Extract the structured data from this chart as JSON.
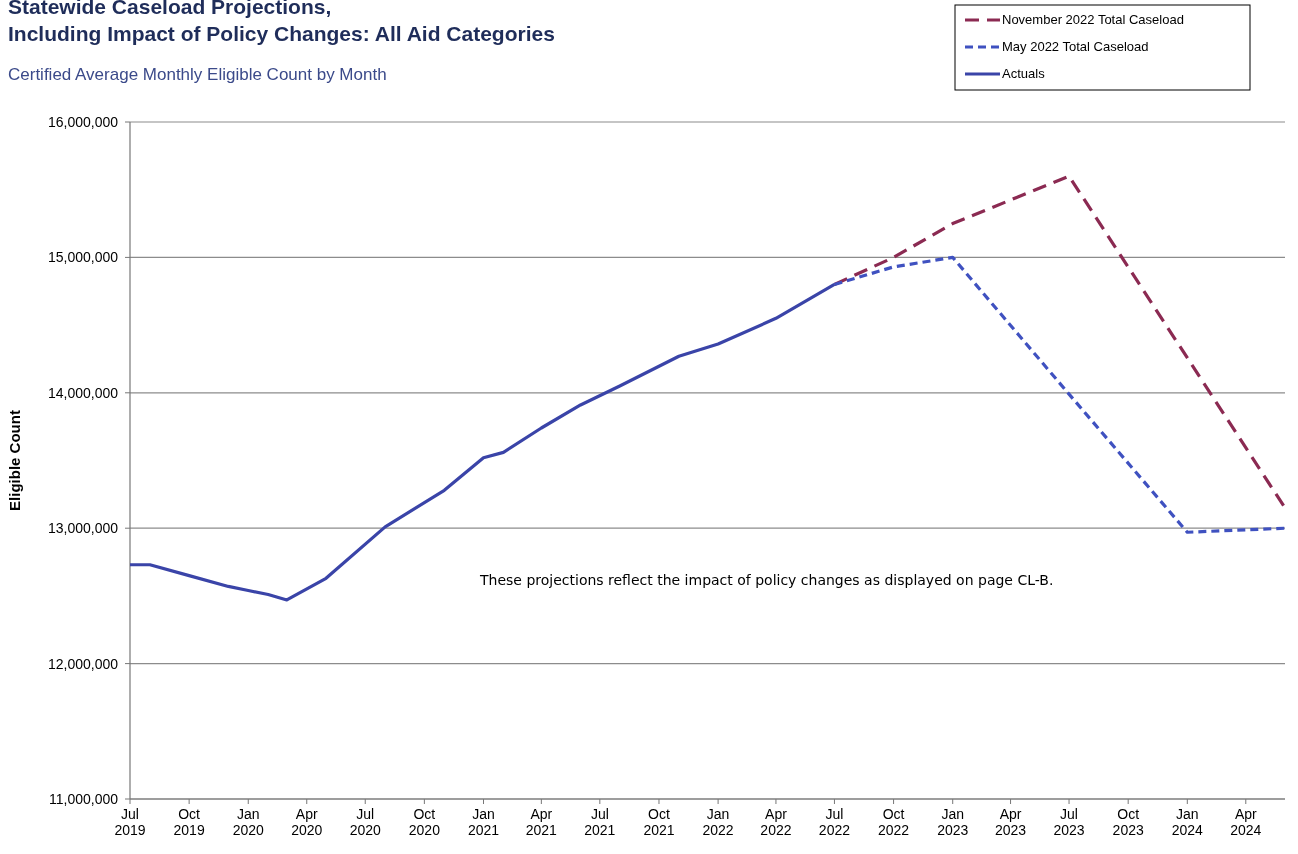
{
  "chart_data": {
    "type": "line",
    "title": "Statewide Caseload Projections,\nIncluding Impact of Policy Changes: All Aid Categories",
    "subtitle": "Certified Average Monthly Eligible Count by Month",
    "ylabel": "Eligible Count",
    "annotations": [
      "These projections reflect the impact of policy changes as displayed on page CL-B."
    ],
    "series": [
      {
        "name": "November 2022 Total Caseload",
        "color": "#8b2a52",
        "line_style": "dashed",
        "x": [
          "2022-07",
          "2022-10",
          "2023-01",
          "2023-07",
          "2024-06"
        ],
        "values": [
          14800000,
          15000000,
          15250000,
          15600000,
          13150000
        ]
      },
      {
        "name": "May 2022 Total Caseload",
        "color": "#3f51c0",
        "line_style": "dotted",
        "x": [
          "2022-07",
          "2022-10",
          "2023-01",
          "2023-07",
          "2024-01",
          "2024-06"
        ],
        "values": [
          14800000,
          14930000,
          15000000,
          13990000,
          12970000,
          13000000
        ]
      },
      {
        "name": "Actuals",
        "color": "#3a44a8",
        "line_style": "solid",
        "x": [
          "2019-07",
          "2019-08",
          "2019-10",
          "2019-12",
          "2020-01",
          "2020-02",
          "2020-03",
          "2020-05",
          "2020-08",
          "2020-11",
          "2021-01",
          "2021-02",
          "2021-04",
          "2021-06",
          "2021-08",
          "2021-11",
          "2022-01",
          "2022-04",
          "2022-07"
        ],
        "values": [
          12730000,
          12730000,
          12650000,
          12570000,
          12540000,
          12510000,
          12470000,
          12630000,
          13010000,
          13280000,
          13520000,
          13560000,
          13740000,
          13910000,
          14050000,
          14270000,
          14360000,
          14550000,
          14800000
        ]
      }
    ],
    "xlim": [
      "2019-07",
      "2024-06"
    ],
    "xticks": [
      {
        "value": "2019-07",
        "label": "Jul\n2019"
      },
      {
        "value": "2019-10",
        "label": "Oct\n2019"
      },
      {
        "value": "2020-01",
        "label": "Jan\n2020"
      },
      {
        "value": "2020-04",
        "label": "Apr\n2020"
      },
      {
        "value": "2020-07",
        "label": "Jul\n2020"
      },
      {
        "value": "2020-10",
        "label": "Oct\n2020"
      },
      {
        "value": "2021-01",
        "label": "Jan\n2021"
      },
      {
        "value": "2021-04",
        "label": "Apr\n2021"
      },
      {
        "value": "2021-07",
        "label": "Jul\n2021"
      },
      {
        "value": "2021-10",
        "label": "Oct\n2021"
      },
      {
        "value": "2022-01",
        "label": "Jan\n2022"
      },
      {
        "value": "2022-04",
        "label": "Apr\n2022"
      },
      {
        "value": "2022-07",
        "label": "Jul\n2022"
      },
      {
        "value": "2022-10",
        "label": "Oct\n2022"
      },
      {
        "value": "2023-01",
        "label": "Jan\n2023"
      },
      {
        "value": "2023-04",
        "label": "Apr\n2023"
      },
      {
        "value": "2023-07",
        "label": "Jul\n2023"
      },
      {
        "value": "2023-10",
        "label": "Oct\n2023"
      },
      {
        "value": "2024-01",
        "label": "Jan\n2024"
      },
      {
        "value": "2024-04",
        "label": "Apr\n2024"
      }
    ],
    "ylim": [
      11000000,
      16000000
    ],
    "yticks": [
      {
        "value": 11000000,
        "label": "11,000,000"
      },
      {
        "value": 12000000,
        "label": "12,000,000"
      },
      {
        "value": 13000000,
        "label": "13,000,000"
      },
      {
        "value": 14000000,
        "label": "14,000,000"
      },
      {
        "value": 15000000,
        "label": "15,000,000"
      },
      {
        "value": 16000000,
        "label": "16,000,000"
      }
    ],
    "grid": "y",
    "legend": "top right"
  }
}
